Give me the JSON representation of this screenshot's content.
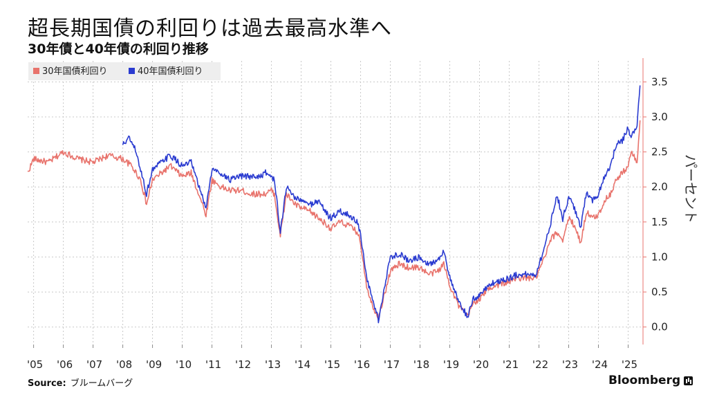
{
  "header": {
    "title": "超長期国債の利回りは過去最高水準へ",
    "subtitle": "30年債と40年債の利回り推移"
  },
  "footer": {
    "source_label": "Source:",
    "source_value": "ブルームバーグ",
    "brand": "Bloomberg",
    "brand_icon": "bloomberg-terminal-icon"
  },
  "chart_data": {
    "type": "line",
    "title": "超長期国債の利回りは過去最高水準へ",
    "subtitle": "30年債と40年債の利回り推移",
    "ylabel": "パーセント",
    "xlabel": "",
    "y_axis_side": "right",
    "ylim": [
      -0.25,
      3.8
    ],
    "y_ticks": [
      0.0,
      0.5,
      1.0,
      1.5,
      2.0,
      2.5,
      3.0,
      3.5
    ],
    "x_tick_labels": [
      "'05",
      "'06",
      "'07",
      "'08",
      "'09",
      "'10",
      "'11",
      "'12",
      "'13",
      "'14",
      "'15",
      "'16",
      "'17",
      "'18",
      "'19",
      "'20",
      "'21",
      "'22",
      "'23",
      "'24",
      "'25"
    ],
    "x_tick_years": [
      2005,
      2006,
      2007,
      2008,
      2009,
      2010,
      2011,
      2012,
      2013,
      2014,
      2015,
      2016,
      2017,
      2018,
      2019,
      2020,
      2021,
      2022,
      2023,
      2024,
      2025
    ],
    "xlim": [
      2004.8,
      2025.5
    ],
    "grid": true,
    "legend_position": "top-left",
    "series": [
      {
        "name": "30年国債利回り",
        "color": "#e8736c",
        "x": [
          2004.8,
          2005.0,
          2005.5,
          2006.0,
          2006.5,
          2007.0,
          2007.5,
          2008.0,
          2008.3,
          2008.6,
          2008.8,
          2009.0,
          2009.3,
          2009.6,
          2010.0,
          2010.3,
          2010.6,
          2010.8,
          2011.0,
          2011.3,
          2011.6,
          2012.0,
          2012.3,
          2012.6,
          2012.8,
          2013.0,
          2013.1,
          2013.3,
          2013.5,
          2013.8,
          2014.0,
          2014.3,
          2014.6,
          2014.9,
          2015.0,
          2015.3,
          2015.6,
          2015.9,
          2016.0,
          2016.2,
          2016.4,
          2016.6,
          2016.8,
          2017.0,
          2017.3,
          2017.6,
          2018.0,
          2018.3,
          2018.6,
          2018.8,
          2019.0,
          2019.3,
          2019.6,
          2019.8,
          2020.0,
          2020.3,
          2020.6,
          2021.0,
          2021.3,
          2021.6,
          2021.9,
          2022.0,
          2022.2,
          2022.4,
          2022.6,
          2022.8,
          2023.0,
          2023.2,
          2023.4,
          2023.6,
          2023.8,
          2024.0,
          2024.2,
          2024.4,
          2024.6,
          2024.8,
          2025.0,
          2025.1,
          2025.3,
          2025.4
        ],
        "y": [
          2.2,
          2.4,
          2.35,
          2.5,
          2.4,
          2.35,
          2.45,
          2.4,
          2.3,
          2.1,
          1.75,
          2.1,
          2.2,
          2.3,
          2.15,
          2.2,
          1.85,
          1.6,
          2.1,
          2.0,
          1.95,
          1.95,
          1.9,
          1.9,
          1.9,
          1.95,
          1.9,
          1.3,
          1.9,
          1.75,
          1.7,
          1.65,
          1.55,
          1.45,
          1.4,
          1.5,
          1.45,
          1.35,
          1.2,
          0.6,
          0.3,
          0.15,
          0.45,
          0.8,
          0.9,
          0.85,
          0.85,
          0.75,
          0.8,
          0.9,
          0.6,
          0.3,
          0.15,
          0.35,
          0.4,
          0.55,
          0.6,
          0.65,
          0.7,
          0.7,
          0.7,
          0.8,
          1.0,
          1.25,
          1.35,
          1.25,
          1.55,
          1.45,
          1.2,
          1.65,
          1.55,
          1.6,
          1.8,
          1.9,
          2.1,
          2.2,
          2.3,
          2.5,
          2.35,
          2.95
        ]
      },
      {
        "name": "40年国債利回り",
        "color": "#2a3bd0",
        "x": [
          2008.0,
          2008.2,
          2008.4,
          2008.6,
          2008.8,
          2009.0,
          2009.3,
          2009.6,
          2010.0,
          2010.3,
          2010.6,
          2010.8,
          2011.0,
          2011.3,
          2011.6,
          2012.0,
          2012.3,
          2012.6,
          2012.8,
          2013.0,
          2013.1,
          2013.3,
          2013.5,
          2013.8,
          2014.0,
          2014.3,
          2014.6,
          2014.9,
          2015.0,
          2015.3,
          2015.6,
          2015.9,
          2016.0,
          2016.2,
          2016.4,
          2016.6,
          2016.8,
          2017.0,
          2017.3,
          2017.6,
          2018.0,
          2018.3,
          2018.6,
          2018.8,
          2019.0,
          2019.3,
          2019.6,
          2019.8,
          2020.0,
          2020.3,
          2020.6,
          2021.0,
          2021.3,
          2021.6,
          2021.9,
          2022.0,
          2022.2,
          2022.4,
          2022.6,
          2022.8,
          2023.0,
          2023.2,
          2023.4,
          2023.6,
          2023.8,
          2024.0,
          2024.2,
          2024.4,
          2024.6,
          2024.8,
          2025.0,
          2025.1,
          2025.3,
          2025.4
        ],
        "y": [
          2.6,
          2.7,
          2.55,
          2.25,
          1.9,
          2.25,
          2.35,
          2.45,
          2.3,
          2.35,
          1.95,
          1.7,
          2.25,
          2.2,
          2.1,
          2.15,
          2.15,
          2.15,
          2.2,
          2.15,
          2.1,
          1.35,
          2.0,
          1.85,
          1.8,
          1.75,
          1.8,
          1.6,
          1.55,
          1.65,
          1.6,
          1.5,
          1.3,
          0.7,
          0.4,
          0.1,
          0.55,
          1.0,
          1.05,
          0.95,
          1.0,
          0.9,
          0.95,
          1.1,
          0.7,
          0.35,
          0.15,
          0.4,
          0.45,
          0.6,
          0.65,
          0.7,
          0.75,
          0.75,
          0.75,
          0.9,
          1.15,
          1.5,
          1.9,
          1.55,
          1.85,
          1.7,
          1.4,
          1.95,
          1.8,
          1.9,
          2.15,
          2.3,
          2.6,
          2.65,
          2.85,
          2.7,
          2.9,
          3.45
        ]
      }
    ]
  }
}
